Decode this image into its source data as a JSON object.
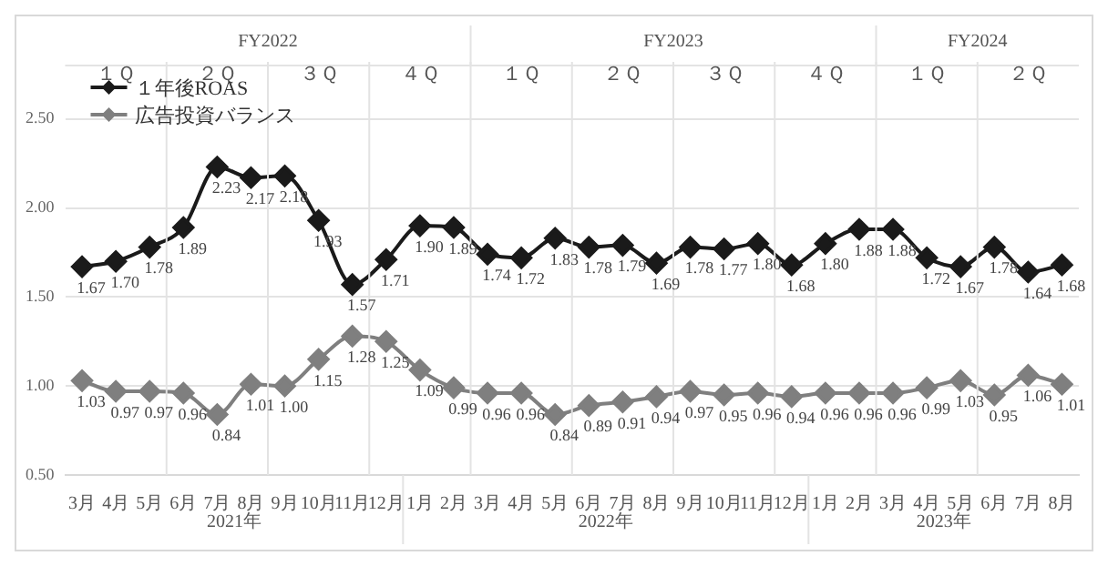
{
  "chart_data": {
    "type": "line",
    "categories": [
      "3月",
      "4月",
      "5月",
      "6月",
      "7月",
      "8月",
      "9月",
      "10月",
      "11月",
      "12月",
      "1月",
      "2月",
      "3月",
      "4月",
      "5月",
      "6月",
      "7月",
      "8月",
      "9月",
      "10月",
      "11月",
      "12月",
      "1月",
      "2月",
      "3月",
      "4月",
      "5月",
      "6月",
      "7月",
      "8月"
    ],
    "series": [
      {
        "name": "１年後ROAS",
        "color": "#1a1a1a",
        "values": [
          1.67,
          1.7,
          1.78,
          1.89,
          2.23,
          2.17,
          2.18,
          1.93,
          1.57,
          1.71,
          1.9,
          1.89,
          1.74,
          1.72,
          1.83,
          1.78,
          1.79,
          1.69,
          1.78,
          1.77,
          1.8,
          1.68,
          1.8,
          1.88,
          1.88,
          1.72,
          1.67,
          1.78,
          1.64,
          1.68
        ],
        "value_labels": [
          "1.67",
          "1.70",
          "1.78",
          "1.89",
          "2.23",
          "2.17",
          "2.18",
          "1.93",
          "1.57",
          "1.71",
          "1.90",
          "1.89",
          "1.74",
          "1.72",
          "1.83",
          "1.78",
          "1.79",
          "1.69",
          "1.78",
          "1.77",
          "1.80",
          "1.68",
          "1.80",
          "1.88",
          "1.88",
          "1.72",
          "1.67",
          "1.78",
          "1.64",
          "1.68"
        ]
      },
      {
        "name": "広告投資バランス",
        "color": "#7f7f7f",
        "values": [
          1.03,
          0.97,
          0.97,
          0.96,
          0.84,
          1.01,
          1.0,
          1.15,
          1.28,
          1.25,
          1.09,
          0.99,
          0.96,
          0.96,
          0.84,
          0.89,
          0.91,
          0.94,
          0.97,
          0.95,
          0.96,
          0.94,
          0.96,
          0.96,
          0.96,
          0.99,
          1.03,
          0.95,
          1.06,
          1.01
        ],
        "value_labels": [
          "1.03",
          "0.97",
          "0.97",
          "0.96",
          "0.84",
          "1.01",
          "1.00",
          "1.15",
          "1.28",
          "1.25",
          "1.09",
          "0.99",
          "0.96",
          "0.96",
          "0.84",
          "0.89",
          "0.91",
          "0.94",
          "0.97",
          "0.95",
          "0.96",
          "0.94",
          "0.96",
          "0.96",
          "0.96",
          "0.99",
          "1.03",
          "0.95",
          "1.06",
          "1.01"
        ]
      }
    ],
    "ylim": [
      0.5,
      2.8
    ],
    "yticks": [
      {
        "value": 0.5,
        "label": "0.50"
      },
      {
        "value": 1,
        "label": "1.00"
      },
      {
        "value": 1.5,
        "label": "1.50"
      },
      {
        "value": 2,
        "label": "2.00"
      },
      {
        "value": 2.5,
        "label": "2.50"
      }
    ],
    "annotations": [
      "FY2022",
      "FY2023",
      "FY2024",
      "１Ｑ",
      "２Ｑ",
      "３Ｑ",
      "４Ｑ",
      "１Ｑ",
      "２Ｑ",
      "３Ｑ",
      "４Ｑ",
      "１Ｑ",
      "２Ｑ",
      "2021年",
      "2022年",
      "2023年"
    ],
    "grid": true,
    "legend": "top left",
    "marker": "diamond"
  }
}
